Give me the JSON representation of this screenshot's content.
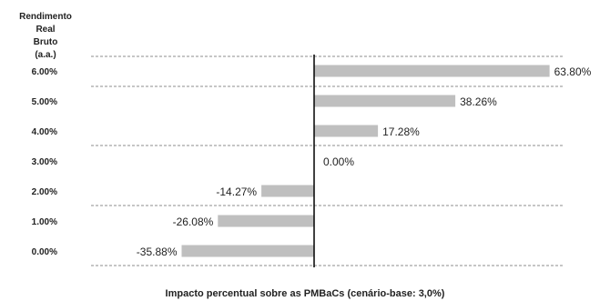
{
  "chart_data": {
    "type": "bar",
    "orientation": "horizontal",
    "ylabel_lines": [
      "Rendimento Real",
      "Bruto",
      "(a.a.)"
    ],
    "xlabel": "Impacto percentual sobre as PMBaCs (cenário-base: 3,0%)",
    "categories": [
      "6.00%",
      "5.00%",
      "4.00%",
      "3.00%",
      "2.00%",
      "1.00%",
      "0.00%"
    ],
    "values": [
      63.8,
      38.26,
      17.28,
      0.0,
      -14.27,
      -26.08,
      -35.88
    ],
    "data_labels": [
      "63.80%",
      "38.26%",
      "17.28%",
      "0.00%",
      "-14.27%",
      "-26.08%",
      "-35.88%"
    ],
    "xlim": [
      -55.7,
      66.6
    ],
    "bar_color": "#bfbfbf",
    "grid": "dashed horizontal separators",
    "legend": "none"
  }
}
